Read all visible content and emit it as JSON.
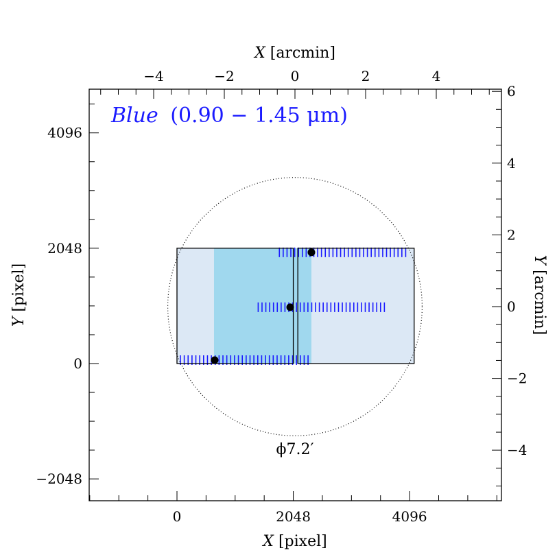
{
  "chart_data": {
    "type": "diagram",
    "title": "Blue (0.90 − 1.45 μm)",
    "title_parts": {
      "italic": "Blue",
      "rest": "(0.90 − 1.45 μm)"
    },
    "title_color": "#1a1aff",
    "axes": {
      "bottom": {
        "label_var": "X",
        "label_unit": "[pixel]",
        "range": [
          -1546,
          5713
        ],
        "ticks": [
          0,
          2048,
          4096
        ],
        "tick_labels": [
          "0",
          "2048",
          "4096"
        ],
        "minor_step": 512
      },
      "left": {
        "label_var": "Y",
        "label_unit": "[pixel]",
        "range": [
          -2436,
          4872
        ],
        "ticks": [
          -2048,
          0,
          2048,
          4096
        ],
        "tick_labels": [
          "−2048",
          "0",
          "2048",
          "4096"
        ],
        "minor_step": 512
      },
      "top": {
        "label_var": "X",
        "label_unit": "[arcmin]",
        "ticks": [
          -4,
          -2,
          0,
          2,
          4
        ],
        "tick_labels": [
          "−4",
          "−2",
          "0",
          "2",
          "4"
        ],
        "minor_step": 0.5
      },
      "right": {
        "label_var": "Y",
        "label_unit": "[arcmin]",
        "ticks": [
          -4,
          -2,
          0,
          2,
          4,
          6
        ],
        "tick_labels": [
          "−4",
          "−2",
          "0",
          "2",
          "4",
          "6"
        ],
        "minor_step": 0.5
      }
    },
    "detectors": [
      {
        "x0": 0,
        "y0": 0,
        "x1": 2048,
        "y1": 2048
      },
      {
        "x0": 2128,
        "y0": 0,
        "x1": 4176,
        "y1": 2048
      }
    ],
    "detector_fill": "#dce8f5",
    "band": {
      "x0": 652,
      "x1": 2367,
      "color": "#a0d8ee"
    },
    "dither_rows": [
      {
        "x_start": 60,
        "x_end": 2308,
        "y": 61,
        "count": 34
      },
      {
        "x_start": 1430,
        "x_end": 3652,
        "y": 1000,
        "count": 34
      },
      {
        "x_start": 1803,
        "x_end": 4027,
        "y": 1975,
        "count": 34
      }
    ],
    "dither_color": "#1a1aff",
    "points": [
      {
        "x": 664,
        "y": 61
      },
      {
        "x": 1993,
        "y": 1000
      },
      {
        "x": 2367,
        "y": 1975
      }
    ],
    "field_circle": {
      "center_arcmin": [
        0,
        0
      ],
      "diameter_arcmin": 7.2,
      "label": "ϕ7.2′"
    }
  }
}
